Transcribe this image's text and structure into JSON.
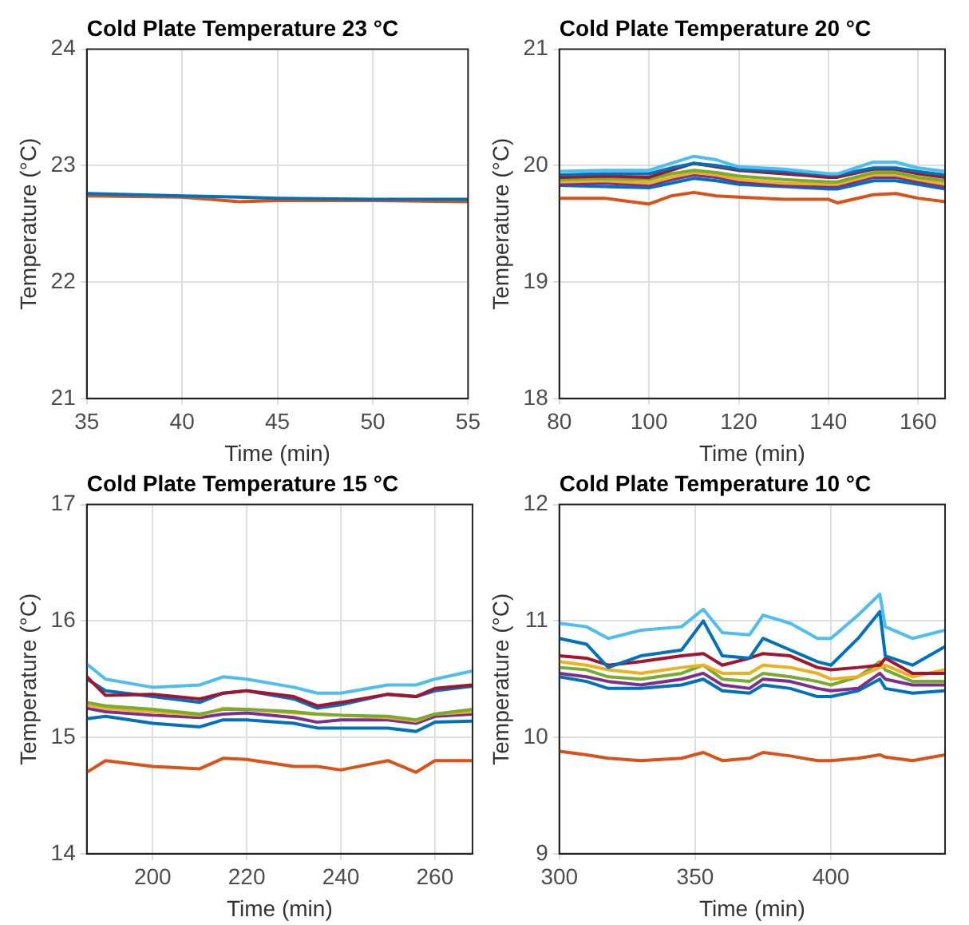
{
  "chart_data": [
    {
      "type": "line",
      "title": "Cold Plate Temperature 23 °C",
      "xlabel": "Time (min)",
      "ylabel": "Temperature (°C)",
      "xlim": [
        35,
        55
      ],
      "xticks": [
        35,
        40,
        45,
        50,
        55
      ],
      "ylim": [
        21,
        24
      ],
      "yticks": [
        21,
        22,
        23,
        24
      ],
      "grid": true,
      "x": [
        35,
        40,
        43,
        45,
        50,
        55
      ],
      "series": [
        {
          "color": "#0072bd",
          "values": [
            22.76,
            22.74,
            22.73,
            22.72,
            22.71,
            22.71
          ]
        },
        {
          "color": "#d95319",
          "values": [
            22.74,
            22.73,
            22.69,
            22.7,
            22.7,
            22.69
          ]
        }
      ]
    },
    {
      "type": "line",
      "title": "Cold Plate Temperature 20 °C",
      "xlabel": "Time (min)",
      "ylabel": "Temperature (°C)",
      "xlim": [
        80,
        166
      ],
      "xticks": [
        80,
        100,
        120,
        140,
        160
      ],
      "ylim": [
        18,
        21
      ],
      "yticks": [
        18,
        19,
        20,
        21
      ],
      "grid": true,
      "x": [
        80,
        90,
        100,
        105,
        110,
        115,
        120,
        130,
        140,
        142,
        150,
        155,
        160,
        166
      ],
      "series": [
        {
          "color": "#4dbeee",
          "values": [
            19.95,
            19.96,
            19.96,
            20.02,
            20.08,
            20.05,
            19.99,
            19.97,
            19.93,
            19.93,
            20.03,
            20.03,
            19.98,
            19.95
          ]
        },
        {
          "color": "#0072bd",
          "values": [
            19.92,
            19.93,
            19.93,
            19.98,
            20.02,
            20.0,
            19.97,
            19.95,
            19.92,
            19.92,
            19.98,
            19.98,
            19.95,
            19.92
          ]
        },
        {
          "color": "#a2142f",
          "values": [
            19.9,
            19.91,
            19.9,
            19.96,
            20.02,
            19.99,
            19.96,
            19.93,
            19.9,
            19.9,
            19.97,
            19.97,
            19.93,
            19.9
          ]
        },
        {
          "color": "#77ac30",
          "values": [
            19.88,
            19.89,
            19.88,
            19.93,
            19.96,
            19.94,
            19.91,
            19.88,
            19.86,
            19.86,
            19.94,
            19.94,
            19.9,
            19.87
          ]
        },
        {
          "color": "#edb120",
          "values": [
            19.86,
            19.87,
            19.85,
            19.9,
            19.94,
            19.92,
            19.88,
            19.85,
            19.84,
            19.84,
            19.92,
            19.92,
            19.88,
            19.84
          ]
        },
        {
          "color": "#7e2f8e",
          "values": [
            19.84,
            19.85,
            19.83,
            19.88,
            19.92,
            19.9,
            19.86,
            19.83,
            19.82,
            19.82,
            19.9,
            19.9,
            19.86,
            19.82
          ]
        },
        {
          "color": "#0072bd",
          "values": [
            19.83,
            19.82,
            19.81,
            19.85,
            19.89,
            19.87,
            19.84,
            19.82,
            19.8,
            19.8,
            19.87,
            19.87,
            19.84,
            19.8
          ]
        },
        {
          "color": "#d95319",
          "values": [
            19.72,
            19.72,
            19.67,
            19.74,
            19.77,
            19.74,
            19.73,
            19.71,
            19.71,
            19.68,
            19.75,
            19.76,
            19.72,
            19.69
          ]
        }
      ]
    },
    {
      "type": "line",
      "title": "Cold Plate Temperature 15 °C",
      "xlabel": "Time (min)",
      "ylabel": "Temperature (°C)",
      "xlim": [
        186,
        268
      ],
      "xticks": [
        200,
        220,
        240,
        260
      ],
      "ylim": [
        14,
        17
      ],
      "yticks": [
        14,
        15,
        16,
        17
      ],
      "grid": true,
      "x": [
        186,
        190,
        200,
        210,
        215,
        220,
        230,
        235,
        240,
        250,
        256,
        260,
        268
      ],
      "series": [
        {
          "color": "#4dbeee",
          "values": [
            15.63,
            15.5,
            15.43,
            15.45,
            15.52,
            15.5,
            15.43,
            15.38,
            15.38,
            15.45,
            15.45,
            15.5,
            15.57
          ]
        },
        {
          "color": "#a2142f",
          "values": [
            15.52,
            15.36,
            15.37,
            15.33,
            15.38,
            15.4,
            15.35,
            15.27,
            15.3,
            15.37,
            15.35,
            15.42,
            15.45
          ]
        },
        {
          "color": "#0072bd",
          "values": [
            15.5,
            15.4,
            15.35,
            15.3,
            15.38,
            15.4,
            15.33,
            15.25,
            15.28,
            15.37,
            15.35,
            15.4,
            15.44
          ]
        },
        {
          "color": "#77ac30",
          "values": [
            15.3,
            15.27,
            15.24,
            15.2,
            15.24,
            15.24,
            15.22,
            15.2,
            15.19,
            15.18,
            15.15,
            15.2,
            15.24
          ]
        },
        {
          "color": "#edb120",
          "values": [
            15.28,
            15.25,
            15.22,
            15.19,
            15.25,
            15.24,
            15.21,
            15.2,
            15.19,
            15.17,
            15.14,
            15.2,
            15.22
          ]
        },
        {
          "color": "#7e2f8e",
          "values": [
            15.25,
            15.22,
            15.19,
            15.17,
            15.2,
            15.21,
            15.17,
            15.13,
            15.15,
            15.15,
            15.12,
            15.18,
            15.2
          ]
        },
        {
          "color": "#0072bd",
          "values": [
            15.16,
            15.18,
            15.12,
            15.09,
            15.15,
            15.15,
            15.12,
            15.08,
            15.08,
            15.08,
            15.05,
            15.13,
            15.14
          ]
        },
        {
          "color": "#d95319",
          "values": [
            14.7,
            14.8,
            14.75,
            14.73,
            14.82,
            14.81,
            14.75,
            14.75,
            14.72,
            14.8,
            14.7,
            14.8,
            14.8
          ]
        }
      ]
    },
    {
      "type": "line",
      "title": "Cold Plate Temperature 10 °C",
      "xlabel": "Time (min)",
      "ylabel": "Temperature (°C)",
      "xlim": [
        300,
        442
      ],
      "xticks": [
        300,
        350,
        400
      ],
      "ylim": [
        9,
        12
      ],
      "yticks": [
        9,
        10,
        11,
        12
      ],
      "grid": true,
      "x": [
        300,
        310,
        318,
        330,
        345,
        353,
        360,
        370,
        375,
        385,
        395,
        400,
        410,
        418,
        420,
        430,
        442
      ],
      "series": [
        {
          "color": "#4dbeee",
          "values": [
            10.98,
            10.95,
            10.85,
            10.92,
            10.95,
            11.1,
            10.9,
            10.88,
            11.05,
            10.98,
            10.85,
            10.85,
            11.05,
            11.23,
            10.95,
            10.85,
            10.92
          ]
        },
        {
          "color": "#0072bd",
          "values": [
            10.85,
            10.8,
            10.6,
            10.7,
            10.75,
            11.0,
            10.7,
            10.68,
            10.85,
            10.75,
            10.65,
            10.62,
            10.85,
            11.08,
            10.7,
            10.62,
            10.78
          ]
        },
        {
          "color": "#a2142f",
          "values": [
            10.7,
            10.68,
            10.62,
            10.65,
            10.7,
            10.72,
            10.62,
            10.68,
            10.72,
            10.7,
            10.6,
            10.58,
            10.6,
            10.62,
            10.68,
            10.55,
            10.55
          ]
        },
        {
          "color": "#edb120",
          "values": [
            10.65,
            10.62,
            10.58,
            10.55,
            10.6,
            10.62,
            10.55,
            10.55,
            10.62,
            10.6,
            10.55,
            10.5,
            10.52,
            10.6,
            10.62,
            10.52,
            10.58
          ]
        },
        {
          "color": "#77ac30",
          "values": [
            10.6,
            10.58,
            10.52,
            10.5,
            10.55,
            10.62,
            10.5,
            10.48,
            10.55,
            10.52,
            10.48,
            10.45,
            10.52,
            10.65,
            10.58,
            10.48,
            10.48
          ]
        },
        {
          "color": "#7e2f8e",
          "values": [
            10.55,
            10.52,
            10.48,
            10.45,
            10.5,
            10.55,
            10.45,
            10.42,
            10.5,
            10.48,
            10.42,
            10.4,
            10.42,
            10.55,
            10.5,
            10.45,
            10.45
          ]
        },
        {
          "color": "#0072bd",
          "values": [
            10.52,
            10.48,
            10.42,
            10.42,
            10.45,
            10.5,
            10.4,
            10.38,
            10.45,
            10.42,
            10.35,
            10.35,
            10.4,
            10.5,
            10.42,
            10.38,
            10.4
          ]
        },
        {
          "color": "#d95319",
          "values": [
            9.88,
            9.85,
            9.82,
            9.8,
            9.82,
            9.87,
            9.8,
            9.82,
            9.87,
            9.84,
            9.8,
            9.8,
            9.82,
            9.85,
            9.83,
            9.8,
            9.85
          ]
        }
      ]
    }
  ]
}
